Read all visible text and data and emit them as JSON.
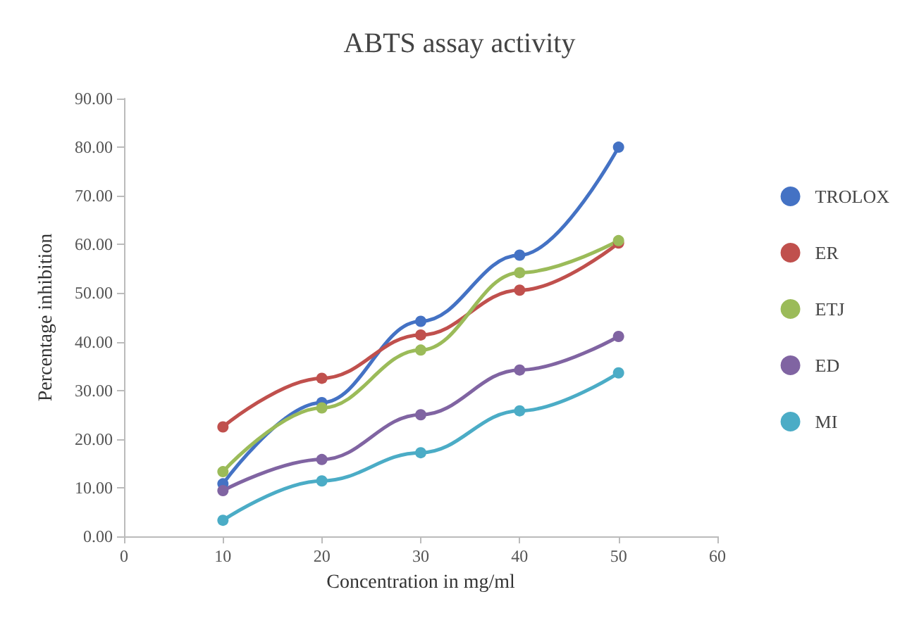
{
  "chart_data": {
    "type": "line",
    "title": "ABTS assay activity",
    "xlabel": "Concentration in mg/ml",
    "ylabel": "Percentage inhibition",
    "x": [
      10,
      20,
      30,
      40,
      50
    ],
    "series": [
      {
        "name": "TROLOX",
        "color": "#4472c4",
        "values": [
          10.8,
          27.5,
          44.2,
          57.8,
          80.0
        ]
      },
      {
        "name": "ER",
        "color": "#c0504d",
        "values": [
          22.5,
          32.5,
          41.4,
          50.6,
          60.3
        ]
      },
      {
        "name": "ETJ",
        "color": "#9bbb59",
        "values": [
          13.3,
          26.4,
          38.3,
          54.2,
          60.8
        ]
      },
      {
        "name": "ED",
        "color": "#8064a2",
        "values": [
          9.4,
          15.8,
          25.0,
          34.2,
          41.1
        ]
      },
      {
        "name": "MI",
        "color": "#4bacc6",
        "values": [
          3.3,
          11.4,
          17.2,
          25.8,
          33.6
        ]
      }
    ],
    "xlim": [
      0,
      60
    ],
    "xticks": [
      0,
      10,
      20,
      30,
      40,
      50,
      60
    ],
    "ylim": [
      0,
      90
    ],
    "yticks": [
      {
        "value": 0,
        "label": "0.00"
      },
      {
        "value": 10,
        "label": "10.00"
      },
      {
        "value": 20,
        "label": "20.00"
      },
      {
        "value": 30,
        "label": "30.00"
      },
      {
        "value": 40,
        "label": "40.00"
      },
      {
        "value": 50,
        "label": "50.00"
      },
      {
        "value": 60,
        "label": "60.00"
      },
      {
        "value": 70,
        "label": "70.00"
      },
      {
        "value": 80,
        "label": "80.00"
      },
      {
        "value": 90,
        "label": "90.00"
      }
    ],
    "grid": false,
    "legend": "right",
    "marker": "circle",
    "line_style": "solid"
  }
}
